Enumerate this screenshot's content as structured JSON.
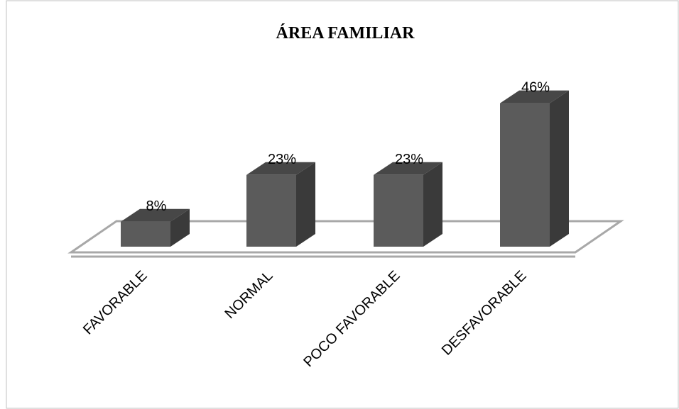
{
  "chart_data": {
    "type": "bar",
    "title": "ÁREA FAMILIAR",
    "categories": [
      "FAVORABLE",
      "NORMAL",
      "POCO FAVORABLE",
      "DESFAVORABLE"
    ],
    "values": [
      8,
      23,
      23,
      46
    ],
    "data_labels": [
      "8%",
      "23%",
      "23%",
      "46%"
    ],
    "ylim": [
      0,
      50
    ],
    "grid": false,
    "legend": "none",
    "style": "3d-column",
    "colors": {
      "bar_front": "#5b5b5b",
      "bar_side": "#3a3a3a",
      "bar_top": "#474747",
      "floor_edge": "#a8a8a8"
    }
  }
}
